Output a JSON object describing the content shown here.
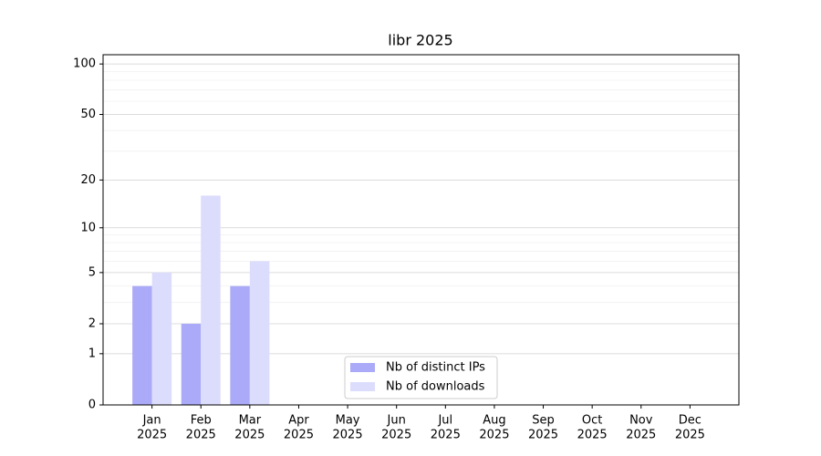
{
  "chart_data": {
    "type": "bar",
    "title": "libr 2025",
    "categories": [
      [
        "Jan",
        "2025"
      ],
      [
        "Feb",
        "2025"
      ],
      [
        "Mar",
        "2025"
      ],
      [
        "Apr",
        "2025"
      ],
      [
        "May",
        "2025"
      ],
      [
        "Jun",
        "2025"
      ],
      [
        "Jul",
        "2025"
      ],
      [
        "Aug",
        "2025"
      ],
      [
        "Sep",
        "2025"
      ],
      [
        "Oct",
        "2025"
      ],
      [
        "Nov",
        "2025"
      ],
      [
        "Dec",
        "2025"
      ]
    ],
    "series": [
      {
        "name": "Nb of distinct IPs",
        "color": "#aaaaf8",
        "values": [
          4,
          2,
          4,
          0,
          0,
          0,
          0,
          0,
          0,
          0,
          0,
          0
        ]
      },
      {
        "name": "Nb of downloads",
        "color": "#dcdcfc",
        "values": [
          5,
          16,
          6,
          0,
          0,
          0,
          0,
          0,
          0,
          0,
          0,
          0
        ]
      }
    ],
    "yscale": "log1p",
    "ylim": [
      0,
      113.5
    ],
    "yticks": [
      0,
      1,
      2,
      5,
      10,
      20,
      50,
      100
    ],
    "yminorticks": [
      3,
      4,
      6,
      7,
      8,
      9,
      30,
      40,
      60,
      70,
      80,
      90
    ],
    "grid": true,
    "legend": "lower center"
  }
}
